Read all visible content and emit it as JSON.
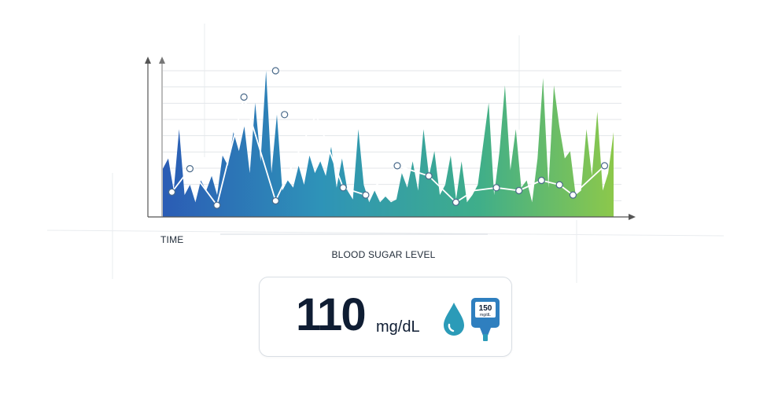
{
  "chart_data": {
    "type": "area",
    "xlabel": "TIME",
    "ylabel": "BLOOD SUGAR LEVEL",
    "grid": true,
    "legend": "none",
    "ylim": [
      0,
      100
    ],
    "color_gradient": [
      "#2b5cb5",
      "#2e93b8",
      "#3fae8a",
      "#8cc84b"
    ],
    "series": [
      {
        "values": [
          33,
          40,
          18,
          60,
          15,
          22,
          10,
          25,
          18,
          28,
          15,
          42,
          35,
          58,
          45,
          62,
          30,
          78,
          38,
          100,
          30,
          70,
          18,
          25,
          20,
          35,
          22,
          42,
          30,
          38,
          28,
          48,
          20,
          40,
          18,
          12,
          60,
          22,
          10,
          18,
          10,
          14,
          10,
          12,
          30,
          20,
          38,
          18,
          60,
          28,
          45,
          15,
          22,
          42,
          12,
          38,
          10,
          15,
          22,
          50,
          78,
          15,
          45,
          90,
          32,
          60,
          20,
          25,
          10,
          40,
          95,
          20,
          90,
          62,
          40,
          45,
          15,
          18,
          60,
          28,
          72,
          18,
          30,
          58
        ]
      },
      {
        "x": [
          0.02,
          0.06,
          0.12,
          0.18,
          0.25,
          0.34,
          0.4,
          0.45,
          0.52,
          0.59,
          0.65,
          0.69,
          0.74,
          0.79,
          0.84,
          0.88,
          0.91,
          0.98
        ],
        "values": [
          17,
          33,
          8,
          82,
          11,
          70,
          20,
          15,
          35,
          28,
          10,
          18,
          20,
          18,
          25,
          22,
          15,
          35
        ]
      }
    ],
    "highlighted_points": [
      [
        0.02,
        17
      ],
      [
        0.06,
        33
      ],
      [
        0.12,
        8
      ],
      [
        0.18,
        82
      ],
      [
        0.25,
        11
      ],
      [
        0.4,
        20
      ],
      [
        0.45,
        15
      ],
      [
        0.52,
        35
      ],
      [
        0.59,
        28
      ],
      [
        0.65,
        10
      ],
      [
        0.74,
        20
      ],
      [
        0.79,
        18
      ],
      [
        0.84,
        25
      ],
      [
        0.88,
        22
      ],
      [
        0.91,
        15
      ],
      [
        0.98,
        35
      ],
      [
        0.25,
        100
      ],
      [
        0.27,
        70
      ]
    ]
  },
  "reading": {
    "value": "110",
    "unit": "mg/dL",
    "meter_display": "150",
    "meter_display_sub": "mg/dL"
  },
  "icons": {
    "drop": "blood-drop-icon",
    "meter": "glucose-meter-icon"
  },
  "colors": {
    "text": "#0f1d33",
    "drop": "#2b9bb8",
    "meter": "#2f7fbf"
  }
}
